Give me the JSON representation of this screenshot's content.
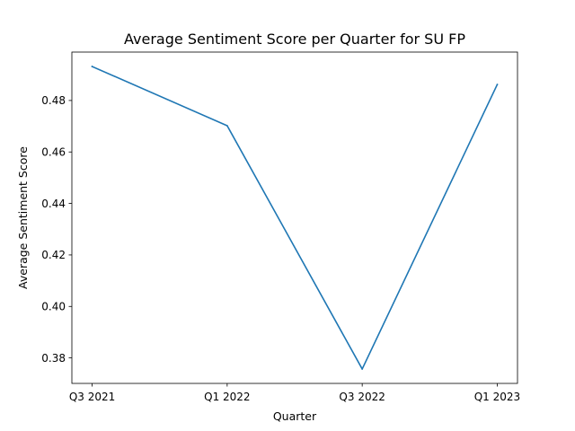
{
  "chart_data": {
    "type": "line",
    "title": "Average Sentiment Score per Quarter for SU FP",
    "xlabel": "Quarter",
    "ylabel": "Average Sentiment Score",
    "categories": [
      "Q3 2021",
      "Q1 2022",
      "Q3 2022",
      "Q1 2023"
    ],
    "series": [
      {
        "values": [
          0.4932,
          0.4702,
          0.3757,
          0.4862
        ],
        "color": "#1f77b4"
      }
    ],
    "yticks": [
      "0.38",
      "0.40",
      "0.42",
      "0.44",
      "0.46",
      "0.48"
    ],
    "ylim": [
      0.3701,
      0.4988
    ],
    "grid": false,
    "legend": "none"
  }
}
